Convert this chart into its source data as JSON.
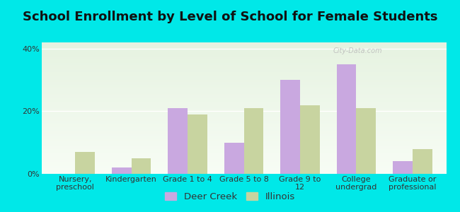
{
  "title": "School Enrollment by Level of School for Female Students",
  "categories": [
    "Nursery,\npreschool",
    "Kindergarten",
    "Grade 1 to 4",
    "Grade 5 to 8",
    "Grade 9 to\n12",
    "College\nundergrad",
    "Graduate or\nprofessional"
  ],
  "deer_creek": [
    0.0,
    2.0,
    21.0,
    10.0,
    30.0,
    35.0,
    4.0
  ],
  "illinois": [
    7.0,
    5.0,
    19.0,
    21.0,
    22.0,
    21.0,
    8.0
  ],
  "deer_creek_color": "#c9a8e0",
  "illinois_color": "#c8d4a0",
  "background_outer": "#00e8e8",
  "ylim": [
    0,
    42
  ],
  "yticks": [
    0,
    20,
    40
  ],
  "ytick_labels": [
    "0%",
    "20%",
    "40%"
  ],
  "legend_deer_creek": "Deer Creek",
  "legend_illinois": "Illinois",
  "title_fontsize": 13,
  "tick_fontsize": 8.0,
  "legend_fontsize": 9.5,
  "bar_width": 0.35
}
